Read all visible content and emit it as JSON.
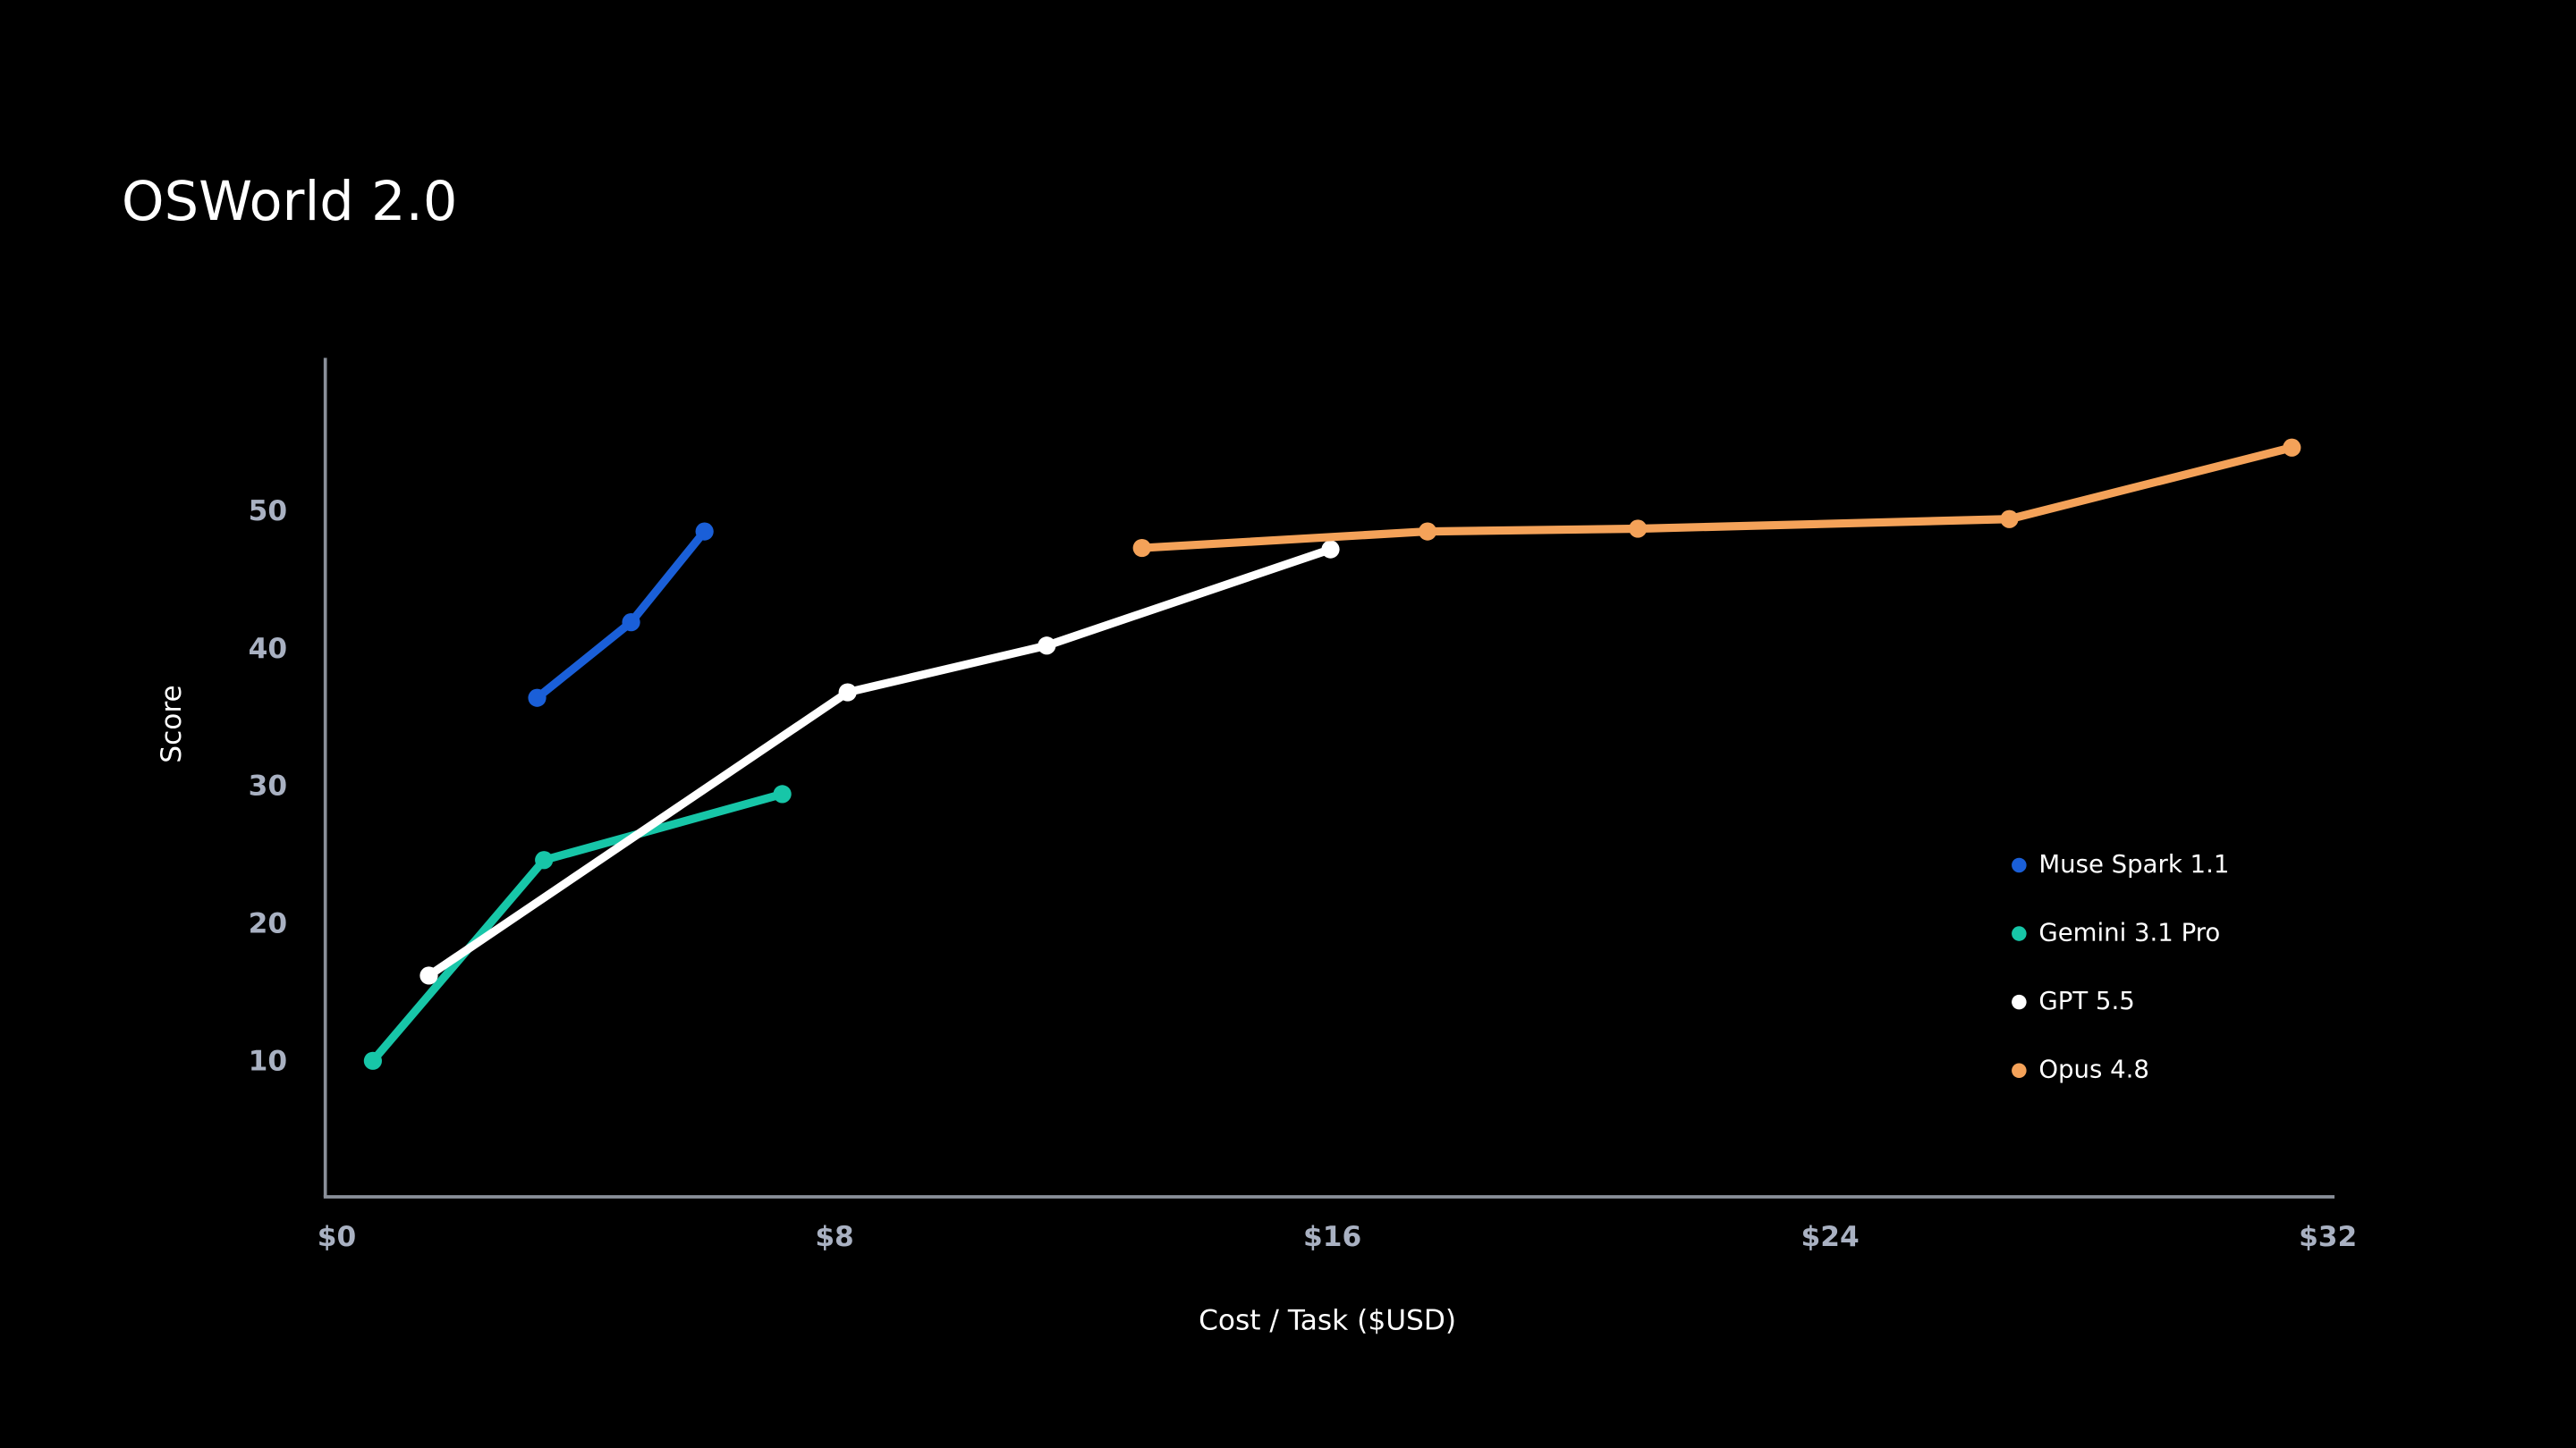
{
  "chart_data": {
    "type": "line",
    "title": "OSWorld 2.0",
    "x_label": "Cost / Task ($USD)",
    "y_label": "Score",
    "xlim": [
      0,
      32
    ],
    "ylim": [
      0,
      61
    ],
    "xticks": [
      {
        "value": 0,
        "label": "$0"
      },
      {
        "value": 8,
        "label": "$8"
      },
      {
        "value": 16,
        "label": "$16"
      },
      {
        "value": 24,
        "label": "$24"
      },
      {
        "value": 32,
        "label": "$32"
      }
    ],
    "yticks": [
      10,
      20,
      30,
      40,
      50
    ],
    "grid": false,
    "legend": "lower right",
    "series": [
      {
        "name": "Muse Spark 1.1",
        "color": "#1a5fd8",
        "x": [
          3.22,
          4.73,
          5.91
        ],
        "values": [
          36.5,
          42.0,
          48.6
        ]
      },
      {
        "name": "Gemini 3.1 Pro",
        "color": "#17c6a8",
        "x": [
          0.58,
          3.33,
          7.16
        ],
        "values": [
          10.1,
          24.7,
          29.5
        ]
      },
      {
        "name": "GPT 5.5",
        "color": "#ffffff",
        "x": [
          1.48,
          8.21,
          11.41,
          15.97
        ],
        "values": [
          16.3,
          36.9,
          40.3,
          47.3
        ]
      },
      {
        "name": "Opus 4.8",
        "color": "#f4a259",
        "x": [
          12.94,
          17.53,
          20.91,
          26.88,
          31.42
        ],
        "values": [
          47.4,
          48.6,
          48.8,
          49.5,
          54.7
        ]
      }
    ]
  }
}
